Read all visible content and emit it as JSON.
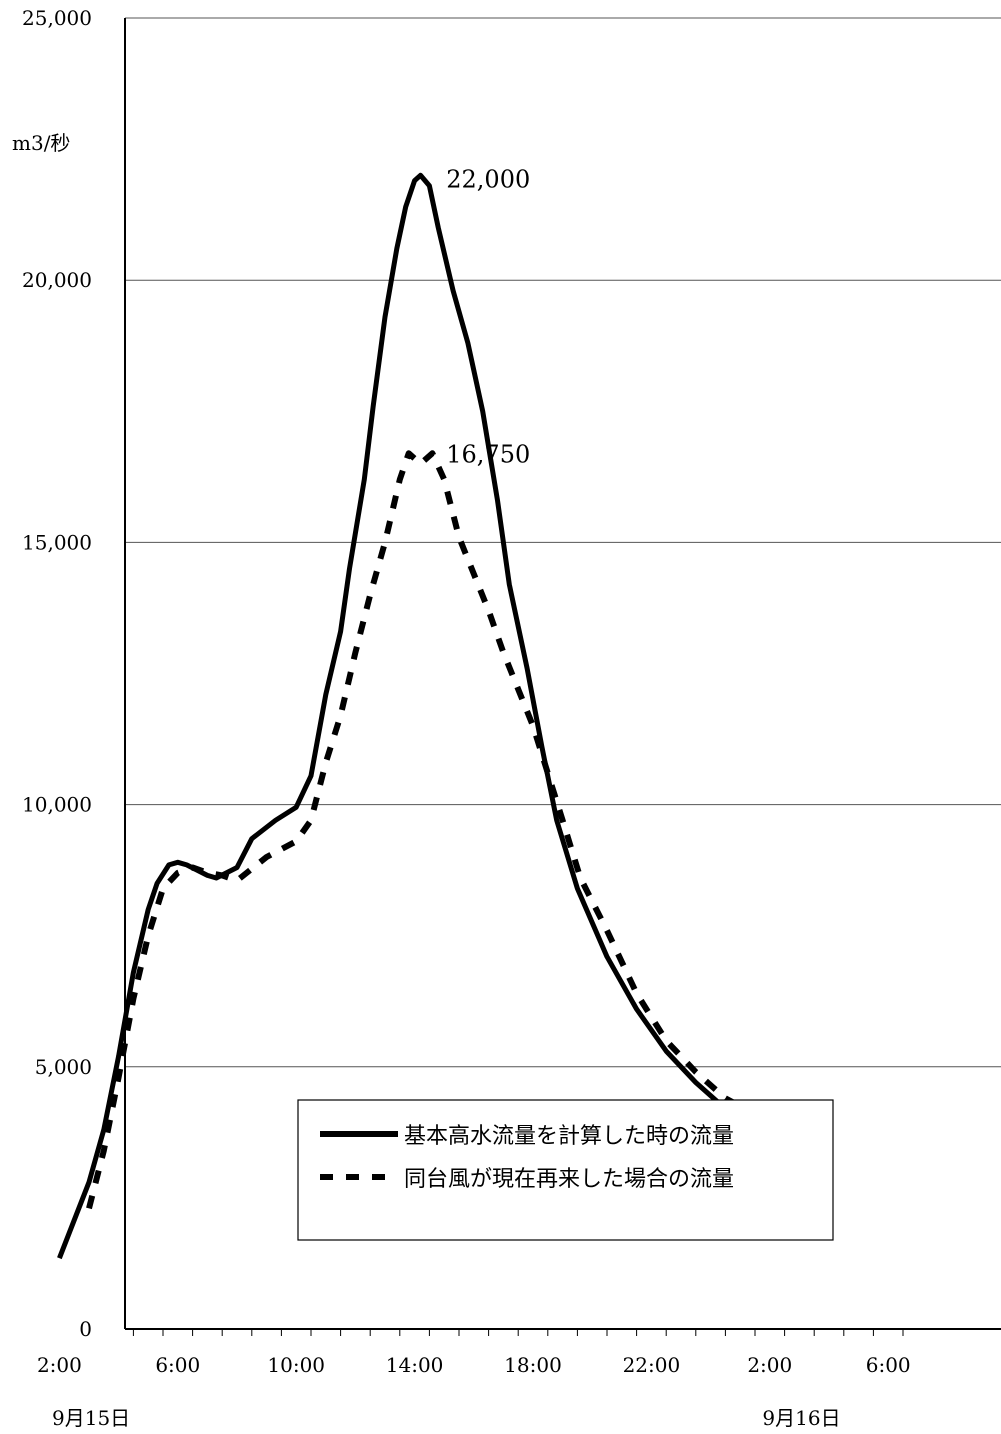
{
  "chart_data": {
    "type": "line",
    "title": "",
    "unit_label": "m3/秒",
    "ylim": [
      0,
      25000
    ],
    "y_ticks": [
      {
        "value": 0,
        "label": "0"
      },
      {
        "value": 5000,
        "label": "5,000"
      },
      {
        "value": 10000,
        "label": "10,000"
      },
      {
        "value": 15000,
        "label": "15,000"
      },
      {
        "value": 20000,
        "label": "20,000"
      },
      {
        "value": 25000,
        "label": "25,000"
      }
    ],
    "grid": true,
    "x_start_hour": 1,
    "x_end_hour": 31,
    "x_ticks": [
      {
        "hour": 2,
        "label": "2:00"
      },
      {
        "hour": 6,
        "label": "6:00"
      },
      {
        "hour": 10,
        "label": "10:00"
      },
      {
        "hour": 14,
        "label": "14:00"
      },
      {
        "hour": 18,
        "label": "18:00"
      },
      {
        "hour": 22,
        "label": "22:00"
      },
      {
        "hour": 26,
        "label": "2:00"
      },
      {
        "hour": 30,
        "label": "6:00"
      }
    ],
    "date_labels": [
      {
        "hour": 3,
        "label": "9月15日"
      },
      {
        "hour": 27,
        "label": "9月16日"
      }
    ],
    "series": [
      {
        "name": "基本高水流量を計算した時の流量",
        "style": "solid",
        "color": "#000000",
        "points": [
          [
            2,
            1350
          ],
          [
            3.0,
            2800
          ],
          [
            3.5,
            3800
          ],
          [
            4.0,
            5200
          ],
          [
            4.5,
            6800
          ],
          [
            5.0,
            8000
          ],
          [
            5.3,
            8500
          ],
          [
            5.7,
            8850
          ],
          [
            6.0,
            8900
          ],
          [
            6.3,
            8850
          ],
          [
            7.0,
            8650
          ],
          [
            7.3,
            8600
          ],
          [
            8.0,
            8800
          ],
          [
            8.5,
            9350
          ],
          [
            9.3,
            9700
          ],
          [
            10.0,
            9950
          ],
          [
            10.5,
            10550
          ],
          [
            11.0,
            12100
          ],
          [
            11.5,
            13300
          ],
          [
            11.8,
            14500
          ],
          [
            12.3,
            16200
          ],
          [
            12.6,
            17600
          ],
          [
            13.0,
            19300
          ],
          [
            13.4,
            20600
          ],
          [
            13.7,
            21400
          ],
          [
            14.0,
            21900
          ],
          [
            14.2,
            22000
          ],
          [
            14.5,
            21800
          ],
          [
            14.8,
            21000
          ],
          [
            15.3,
            19800
          ],
          [
            15.8,
            18800
          ],
          [
            16.3,
            17500
          ],
          [
            16.8,
            15800
          ],
          [
            17.2,
            14200
          ],
          [
            17.8,
            12600
          ],
          [
            18.3,
            11100
          ],
          [
            18.8,
            9700
          ],
          [
            19.5,
            8400
          ],
          [
            20.5,
            7100
          ],
          [
            21.5,
            6100
          ],
          [
            22.5,
            5300
          ],
          [
            23.5,
            4700
          ],
          [
            24.5,
            4200
          ],
          [
            25.5,
            3800
          ],
          [
            26.5,
            3500
          ]
        ]
      },
      {
        "name": "同台風が現在再来した場合の流量",
        "style": "dashed",
        "color": "#000000",
        "points": [
          [
            3.0,
            2300
          ],
          [
            3.5,
            3400
          ],
          [
            4.0,
            4800
          ],
          [
            4.5,
            6300
          ],
          [
            5.0,
            7500
          ],
          [
            5.5,
            8400
          ],
          [
            6.0,
            8700
          ],
          [
            6.5,
            8800
          ],
          [
            7.0,
            8700
          ],
          [
            7.5,
            8650
          ],
          [
            8.0,
            8550
          ],
          [
            9.0,
            9000
          ],
          [
            10.0,
            9300
          ],
          [
            10.5,
            9700
          ],
          [
            11.0,
            10800
          ],
          [
            11.5,
            11700
          ],
          [
            12.0,
            12900
          ],
          [
            12.5,
            14000
          ],
          [
            13.0,
            15000
          ],
          [
            13.5,
            16200
          ],
          [
            13.8,
            16700
          ],
          [
            14.2,
            16500
          ],
          [
            14.6,
            16700
          ],
          [
            15.0,
            16200
          ],
          [
            15.5,
            15100
          ],
          [
            16.0,
            14400
          ],
          [
            16.5,
            13700
          ],
          [
            17.0,
            12900
          ],
          [
            17.5,
            12200
          ],
          [
            18.0,
            11500
          ],
          [
            18.5,
            10600
          ],
          [
            19.0,
            9700
          ],
          [
            19.6,
            8600
          ],
          [
            20.5,
            7600
          ],
          [
            21.5,
            6400
          ],
          [
            22.5,
            5500
          ],
          [
            23.5,
            4900
          ],
          [
            24.5,
            4400
          ],
          [
            25.5,
            4100
          ],
          [
            26.5,
            3800
          ]
        ]
      }
    ],
    "annotations": [
      {
        "text": "22,000",
        "hour": 14.8,
        "value": 22000
      },
      {
        "text": "16,750",
        "hour": 14.8,
        "value": 16750
      }
    ],
    "legend": {
      "position": "bottom-center",
      "entries": [
        {
          "label": "基本高水流量を計算した時の流量",
          "style": "solid"
        },
        {
          "label": "同台風が現在再来した場合の流量",
          "style": "dashed"
        }
      ]
    }
  }
}
